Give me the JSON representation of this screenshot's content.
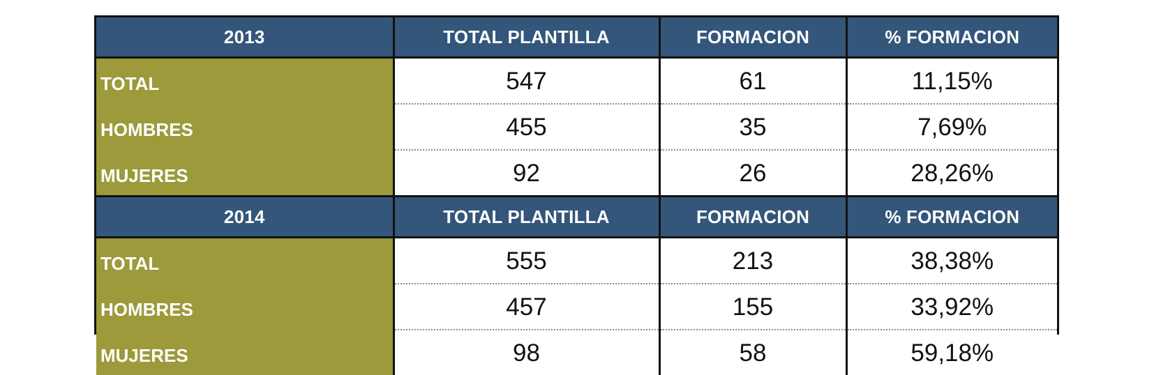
{
  "colors": {
    "header_bg": "#33567a",
    "label_bg": "#9c9a3a",
    "border": "#111111"
  },
  "blocks": [
    {
      "year": "2013",
      "headers": [
        "TOTAL PLANTILLA",
        "FORMACION",
        "% FORMACION"
      ],
      "rows": [
        {
          "label": "TOTAL",
          "total_plantilla": "547",
          "formacion": "61",
          "pct_formacion": "11,15%"
        },
        {
          "label": "HOMBRES",
          "total_plantilla": "455",
          "formacion": "35",
          "pct_formacion": "7,69%"
        },
        {
          "label": "MUJERES",
          "total_plantilla": "92",
          "formacion": "26",
          "pct_formacion": "28,26%"
        }
      ]
    },
    {
      "year": "2014",
      "headers": [
        "TOTAL PLANTILLA",
        "FORMACION",
        "% FORMACION"
      ],
      "rows": [
        {
          "label": "TOTAL",
          "total_plantilla": "555",
          "formacion": "213",
          "pct_formacion": "38,38%"
        },
        {
          "label": "HOMBRES",
          "total_plantilla": "457",
          "formacion": "155",
          "pct_formacion": "33,92%"
        },
        {
          "label": "MUJERES",
          "total_plantilla": "98",
          "formacion": "58",
          "pct_formacion": "59,18%"
        }
      ]
    }
  ]
}
